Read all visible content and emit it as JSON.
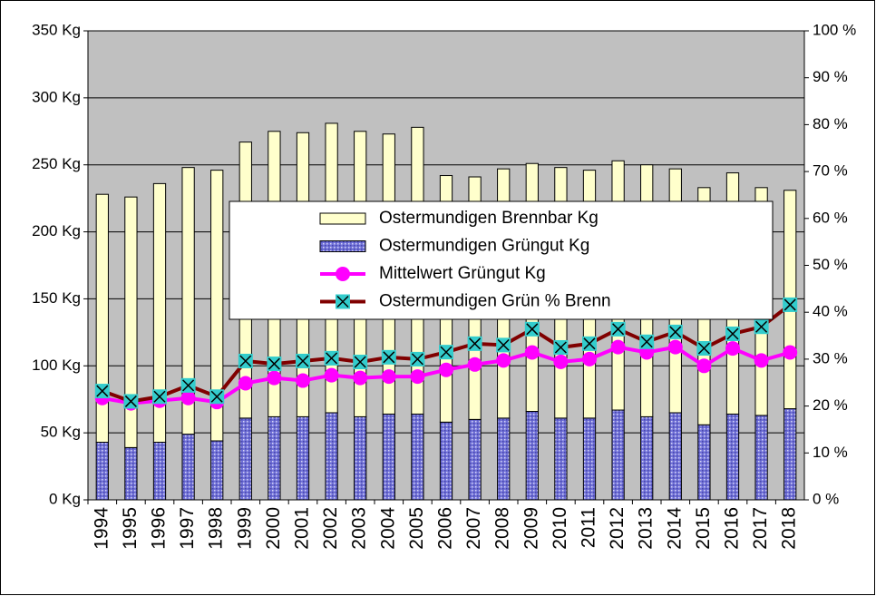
{
  "chart_data": {
    "type": "bar-line",
    "categories": [
      "1994",
      "1995",
      "1996",
      "1997",
      "1998",
      "1999",
      "2000",
      "2001",
      "2002",
      "2003",
      "2004",
      "2005",
      "2006",
      "2007",
      "2008",
      "2009",
      "2010",
      "2011",
      "2012",
      "2013",
      "2014",
      "2015",
      "2016",
      "2017",
      "2018"
    ],
    "series": [
      {
        "name": "Ostermundigen Brennbar Kg",
        "kind": "bar",
        "stacked": true,
        "color": "#ffffcc",
        "axis": "y",
        "values": [
          185,
          187,
          193,
          199,
          202,
          206,
          213,
          212,
          216,
          213,
          209,
          214,
          184,
          181,
          186,
          185,
          187,
          185,
          186,
          188,
          182,
          177,
          180,
          170,
          163
        ]
      },
      {
        "name": "Ostermundigen Grüngut Kg",
        "kind": "bar",
        "stacked": true,
        "color": "#7070d8",
        "axis": "y",
        "values": [
          43,
          39,
          43,
          49,
          44,
          61,
          62,
          62,
          65,
          62,
          64,
          64,
          58,
          60,
          61,
          66,
          61,
          61,
          67,
          62,
          65,
          56,
          64,
          63,
          68
        ]
      },
      {
        "name": "Mittelwert Grüngut Kg",
        "kind": "line",
        "color": "#ff00ff",
        "marker_color": "#ff00ff",
        "axis": "y",
        "values": [
          76,
          72,
          74,
          76,
          73,
          87,
          91,
          89,
          93,
          91,
          92,
          92,
          97,
          101,
          104,
          110,
          103,
          105,
          114,
          110,
          114,
          100,
          113,
          104,
          110
        ]
      },
      {
        "name": "Ostermundigen Grün % Brenn",
        "kind": "line",
        "color": "#800000",
        "marker_color": "#33cccc",
        "axis": "y2",
        "values": [
          23.2,
          21,
          22,
          24.4,
          22,
          29.6,
          29,
          29.6,
          30.2,
          29.4,
          30.4,
          30,
          31.5,
          33.3,
          33,
          36.4,
          32.5,
          33.3,
          36.4,
          33.7,
          35.8,
          32.3,
          35.4,
          36.9,
          41.6
        ]
      }
    ],
    "ylim": [
      0,
      350
    ],
    "yticks": [
      {
        "value": 0,
        "label": "0 Kg"
      },
      {
        "value": 50,
        "label": "50 Kg"
      },
      {
        "value": 100,
        "label": "100 Kg"
      },
      {
        "value": 150,
        "label": "150 Kg"
      },
      {
        "value": 200,
        "label": "200 Kg"
      },
      {
        "value": 250,
        "label": "250 Kg"
      },
      {
        "value": 300,
        "label": "300 Kg"
      },
      {
        "value": 350,
        "label": "350 Kg"
      }
    ],
    "y2lim": [
      0,
      100
    ],
    "y2ticks": [
      {
        "value": 0,
        "label": "0 %"
      },
      {
        "value": 10,
        "label": "10 %"
      },
      {
        "value": 20,
        "label": "20 %"
      },
      {
        "value": 30,
        "label": "30 %"
      },
      {
        "value": 40,
        "label": "40 %"
      },
      {
        "value": 50,
        "label": "50 %"
      },
      {
        "value": 60,
        "label": "60 %"
      },
      {
        "value": 70,
        "label": "70 %"
      },
      {
        "value": 80,
        "label": "80 %"
      },
      {
        "value": 90,
        "label": "90 %"
      },
      {
        "value": 100,
        "label": "100 %"
      }
    ],
    "grid": true,
    "plot_background": "#c0c0c0"
  }
}
